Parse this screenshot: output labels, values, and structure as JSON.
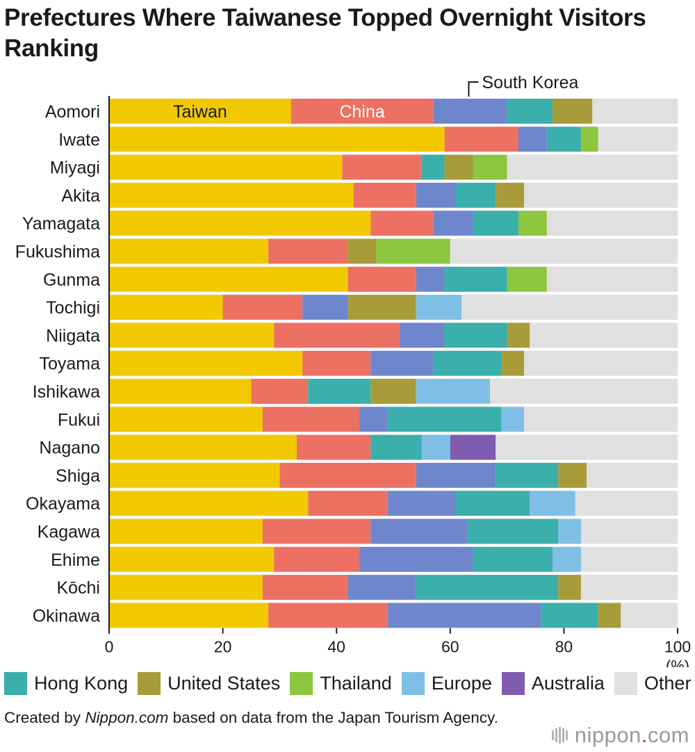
{
  "title": "Prefectures Where Taiwanese Topped Overnight Visitors Ranking",
  "source": {
    "prefix": "Created by ",
    "site": "Nippon.com",
    "suffix": " based on data from the Japan Tourism Agency."
  },
  "logo": {
    "name": "nippon",
    "dot": ".",
    "tld": "com"
  },
  "chart_data": {
    "type": "bar",
    "orientation": "horizontal",
    "stacked": true,
    "x_unit": "(%)",
    "xlim": [
      0,
      100
    ],
    "x_ticks": [
      0,
      20,
      40,
      60,
      80,
      100
    ],
    "grid": false,
    "legend_position": "bottom",
    "inline_labels": [
      {
        "series": "Taiwan",
        "text": "Taiwan"
      },
      {
        "series": "China",
        "text": "China"
      },
      {
        "series": "South Korea",
        "text": "South Korea"
      }
    ],
    "categories": [
      "Aomori",
      "Iwate",
      "Miyagi",
      "Akita",
      "Yamagata",
      "Fukushima",
      "Gunma",
      "Tochigi",
      "Niigata",
      "Toyama",
      "Ishikawa",
      "Fukui",
      "Nagano",
      "Shiga",
      "Okayama",
      "Kagawa",
      "Ehime",
      "Kōchi",
      "Okinawa"
    ],
    "series": [
      {
        "name": "Taiwan",
        "color": "#f2c900",
        "values": [
          32,
          59,
          41,
          43,
          46,
          28,
          42,
          20,
          29,
          34,
          25,
          27,
          33,
          30,
          35,
          27,
          29,
          27,
          28
        ]
      },
      {
        "name": "China",
        "color": "#ec7163",
        "values": [
          25,
          13,
          14,
          11,
          11,
          14,
          12,
          14,
          22,
          12,
          10,
          17,
          13,
          24,
          14,
          19,
          15,
          15,
          21
        ]
      },
      {
        "name": "South Korea",
        "color": "#6e87cc",
        "values": [
          13,
          5,
          0,
          7,
          7,
          0,
          5,
          8,
          8,
          11,
          0,
          5,
          0,
          14,
          12,
          17,
          20,
          12,
          27
        ]
      },
      {
        "name": "Hong Kong",
        "color": "#3aafab",
        "values": [
          8,
          6,
          4,
          7,
          8,
          0,
          11,
          0,
          11,
          12,
          11,
          20,
          9,
          11,
          13,
          16,
          14,
          25,
          10
        ]
      },
      {
        "name": "United States",
        "color": "#a89c3a",
        "values": [
          7,
          0,
          5,
          5,
          0,
          5,
          0,
          12,
          4,
          4,
          8,
          0,
          0,
          5,
          0,
          0,
          0,
          4,
          4
        ]
      },
      {
        "name": "Thailand",
        "color": "#8dc63f",
        "values": [
          0,
          3,
          6,
          0,
          5,
          13,
          7,
          0,
          0,
          0,
          0,
          0,
          0,
          0,
          0,
          0,
          0,
          0,
          0
        ]
      },
      {
        "name": "Europe",
        "color": "#7fbfe6",
        "values": [
          0,
          0,
          0,
          0,
          0,
          0,
          0,
          8,
          0,
          0,
          13,
          4,
          5,
          0,
          8,
          4,
          5,
          0,
          0
        ]
      },
      {
        "name": "Australia",
        "color": "#7f5caf",
        "values": [
          0,
          0,
          0,
          0,
          0,
          0,
          0,
          0,
          0,
          0,
          0,
          0,
          8,
          0,
          0,
          0,
          0,
          0,
          0
        ]
      },
      {
        "name": "Other",
        "color": "#e0e0e0",
        "values": [
          15,
          14,
          30,
          27,
          23,
          40,
          23,
          38,
          26,
          27,
          33,
          27,
          32,
          16,
          18,
          17,
          17,
          17,
          10
        ]
      }
    ],
    "legend": [
      "Hong Kong",
      "United States",
      "Thailand",
      "Europe",
      "Australia",
      "Other"
    ]
  }
}
